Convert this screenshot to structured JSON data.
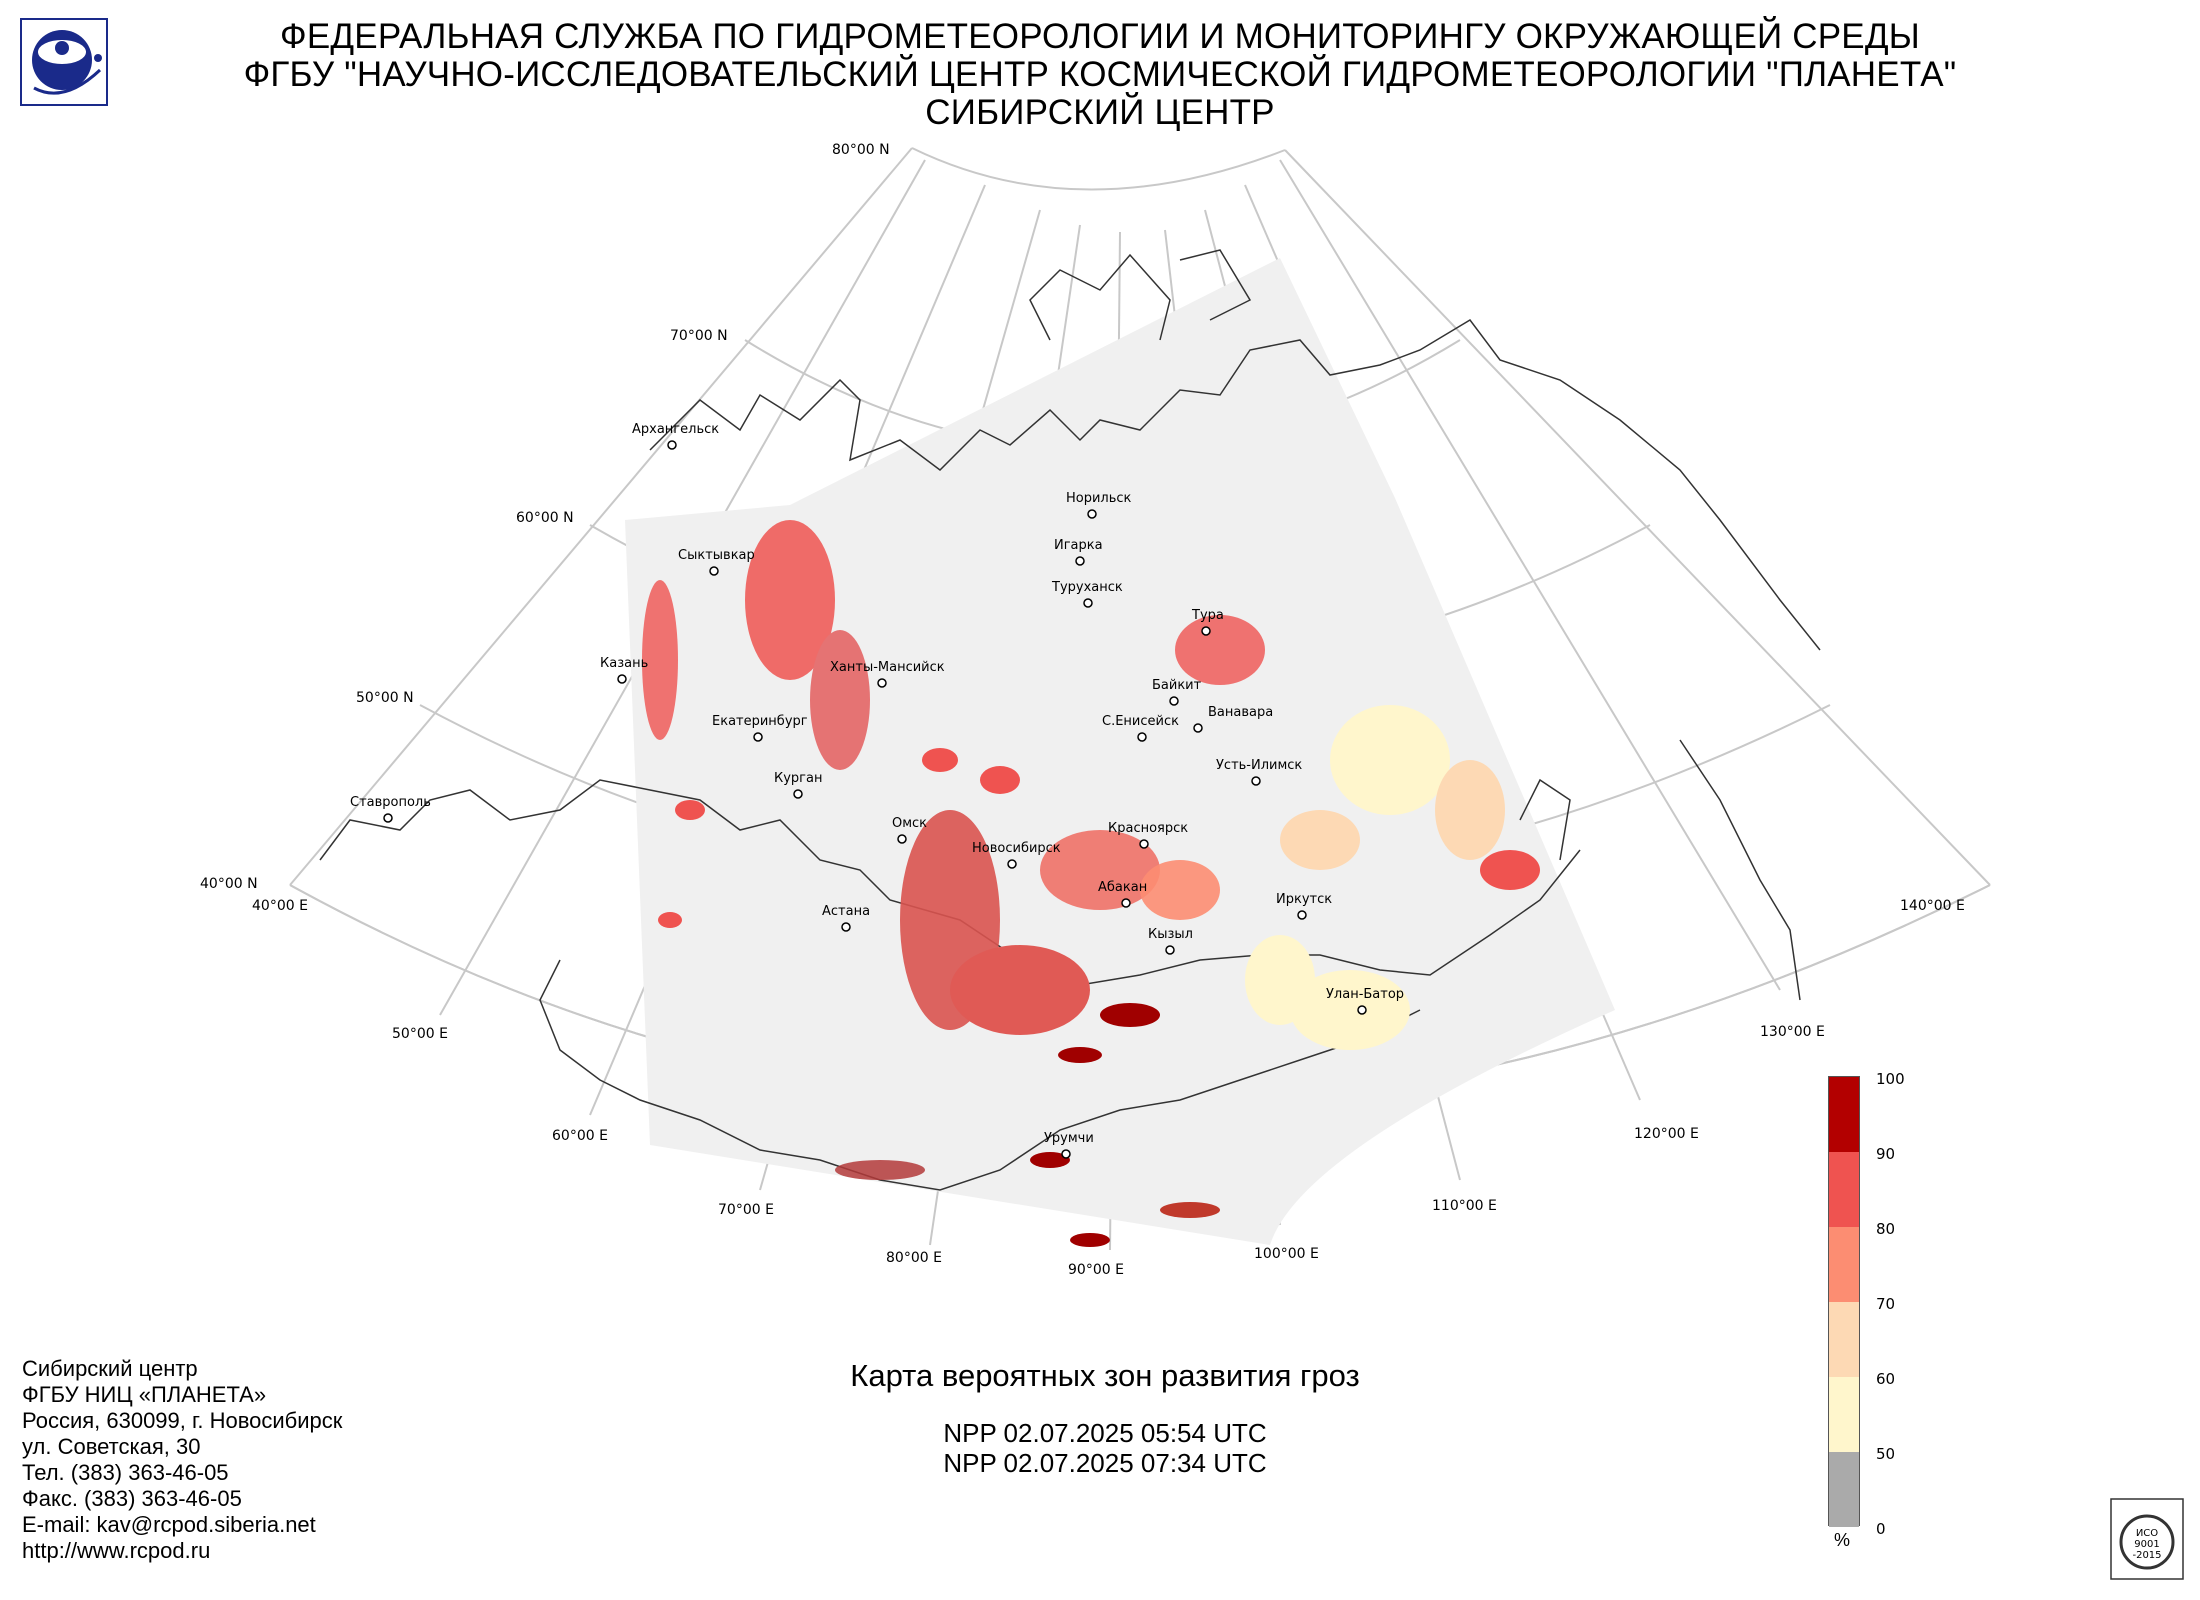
{
  "header": {
    "line1": "ФЕДЕРАЛЬНАЯ СЛУЖБА ПО ГИДРОМЕТЕОРОЛОГИИ И МОНИТОРИНГУ ОКРУЖАЮЩЕЙ СРЕДЫ",
    "line2": "ФГБУ \"НАУЧНО-ИССЛЕДОВАТЕЛЬСКИЙ ЦЕНТР КОСМИЧЕСКОЙ ГИДРОМЕТЕОРОЛОГИИ \"ПЛАНЕТА\"",
    "line3": "СИБИРСКИЙ ЦЕНТР"
  },
  "map": {
    "lat_labels": [
      "80°00 N",
      "70°00 N",
      "60°00 N",
      "50°00 N",
      "40°00 N"
    ],
    "lon_labels": [
      "40°00 E",
      "50°00 E",
      "60°00 E",
      "70°00 E",
      "80°00 E",
      "90°00 E",
      "100°00 E",
      "110°00 E",
      "120°00 E",
      "130°00 E",
      "140°00 E"
    ],
    "cities": [
      {
        "name": "Архангельск"
      },
      {
        "name": "Сыктывкар"
      },
      {
        "name": "Казань"
      },
      {
        "name": "Ханты-Мансийск"
      },
      {
        "name": "Екатеринбург"
      },
      {
        "name": "Курган"
      },
      {
        "name": "Ставрополь"
      },
      {
        "name": "Омск"
      },
      {
        "name": "Астана"
      },
      {
        "name": "Новосибирск"
      },
      {
        "name": "Норильск"
      },
      {
        "name": "Игарка"
      },
      {
        "name": "Туруханск"
      },
      {
        "name": "Тура"
      },
      {
        "name": "Байкит"
      },
      {
        "name": "Ванавара"
      },
      {
        "name": "С.Енисейск"
      },
      {
        "name": "Усть-Илимск"
      },
      {
        "name": "Красноярск"
      },
      {
        "name": "Абакан"
      },
      {
        "name": "Иркутск"
      },
      {
        "name": "Кызыл"
      },
      {
        "name": "Улан-Батор"
      },
      {
        "name": "Урумчи"
      }
    ]
  },
  "map_title": "Карта вероятных зон развития гроз",
  "passes": [
    "NPP 02.07.2025  05:54 UTC",
    "NPP 02.07.2025  07:34 UTC"
  ],
  "footer": [
    "Сибирский центр",
    "ФГБУ НИЦ «ПЛАНЕТА»",
    "Россия, 630099, г. Новосибирск",
    "ул. Советская, 30",
    "Тел. (383) 363-46-05",
    "Факс. (383) 363-46-05",
    "E-mail: kav@rcpod.siberia.net",
    "http://www.rcpod.ru"
  ],
  "legend": {
    "unit": "%",
    "ticks": [
      "100",
      "90",
      "80",
      "70",
      "60",
      "50",
      "0"
    ],
    "colors": [
      "#b30000",
      "#ef5350",
      "#fc8d72",
      "#fdd9b4",
      "#fff6cc",
      "#aaaaaa"
    ]
  },
  "iso_badge": {
    "line1": "ИСО",
    "line2": "9001",
    "line3": "-2015"
  }
}
